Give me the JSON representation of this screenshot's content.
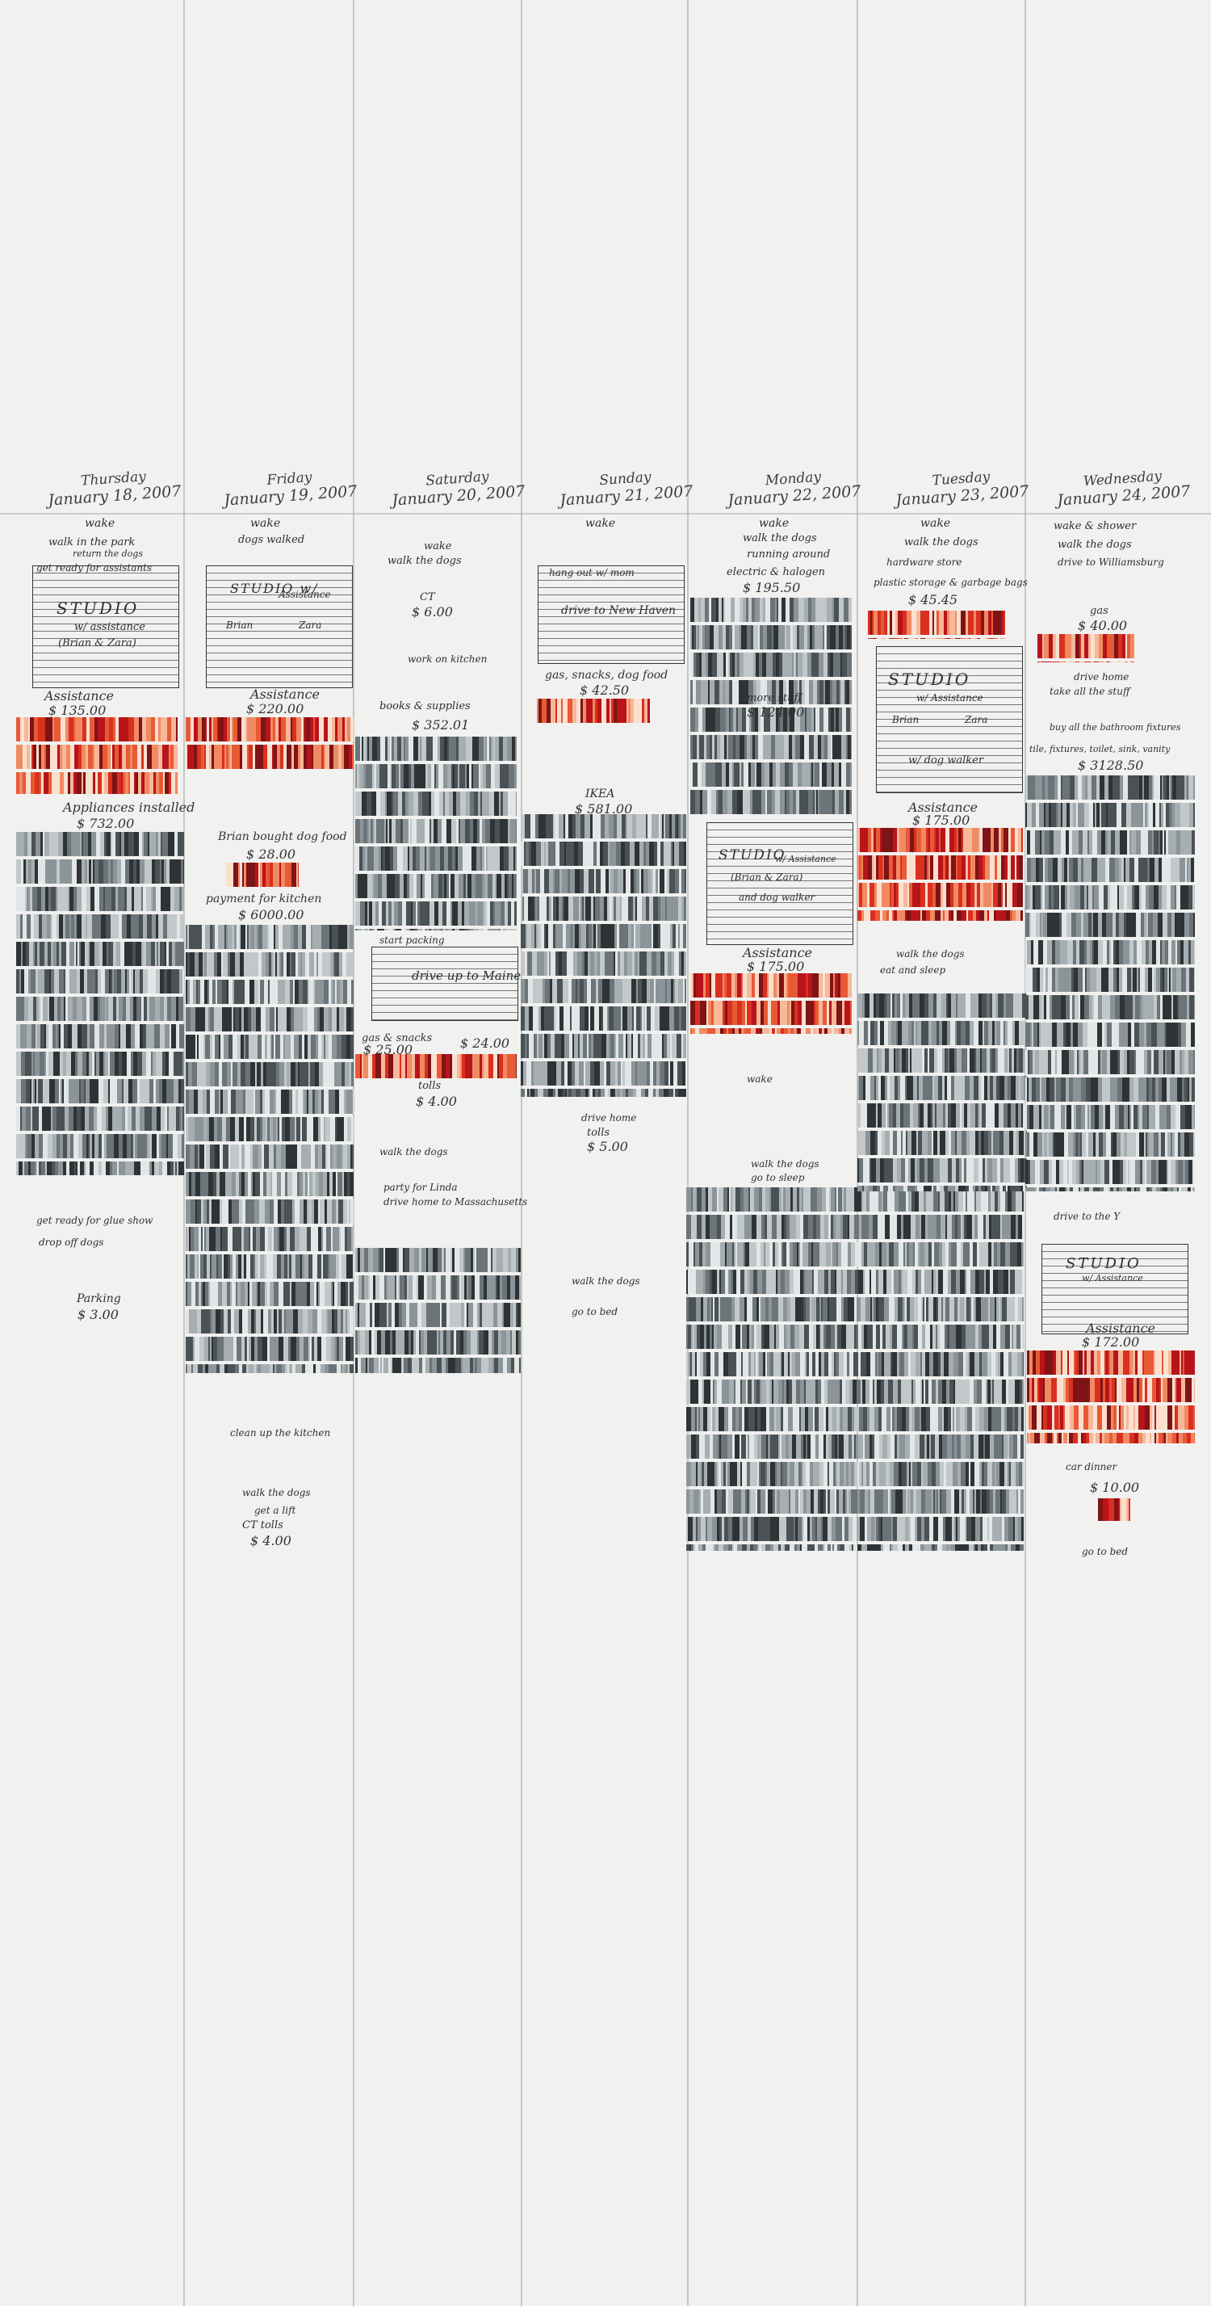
{
  "days": [
    {
      "name": "Thursday",
      "date": "January 18, 2007"
    },
    {
      "name": "Friday",
      "date": "January 19, 2007"
    },
    {
      "name": "Saturday",
      "date": "January 20, 2007"
    },
    {
      "name": "Sunday",
      "date": "January 21, 2007"
    },
    {
      "name": "Monday",
      "date": "January 22, 2007"
    },
    {
      "name": "Tuesday",
      "date": "January 23, 2007"
    },
    {
      "name": "Wednesday",
      "date": "January 24, 2007"
    }
  ],
  "notes": {
    "thu": [
      "wake",
      "walk in the park",
      "return the dogs",
      "get ready for assistants",
      "STUDIO",
      "w/ assistance",
      "(Brian & Zara)",
      "Assistance",
      "$ 135.00",
      "Appliances installed",
      "$ 732.00",
      "get ready for glue show",
      "drop off dogs",
      "Parking",
      "$ 3.00"
    ],
    "fri": [
      "wake",
      "dogs walked",
      "STUDIO w/",
      "Assistance",
      "Brian",
      "Zara",
      "Assistance",
      "$ 220.00",
      "Brian bought dog food",
      "$ 28.00",
      "payment for kitchen",
      "$ 6000.00",
      "clean up the kitchen",
      "walk the dogs",
      "get a lift",
      "CT tolls",
      "$ 4.00"
    ],
    "sat": [
      "wake",
      "walk the dogs",
      "CT",
      "$ 6.00",
      "work on kitchen",
      "books & supplies",
      "$ 352.01",
      "start packing",
      "drive up to Maine",
      "gas & snacks",
      "$ 25.00",
      "$ 24.00",
      "tolls",
      "$ 4.00",
      "walk the dogs",
      "party for Linda",
      "drive home to Massachusetts"
    ],
    "sun": [
      "wake",
      "hang out w/ mom",
      "drive to New Haven",
      "gas, snacks, dog food",
      "$ 42.50",
      "IKEA",
      "$ 581.00",
      "drive home",
      "tolls",
      "$ 5.00",
      "walk the dogs",
      "go to bed"
    ],
    "mon": [
      "wake",
      "walk the dogs",
      "running around",
      "electric & halogen",
      "$ 195.50",
      "more stuff",
      "$ 124.00",
      "STUDIO",
      "w/ Assistance",
      "(Brian & Zara)",
      "and dog walker",
      "Assistance",
      "$ 175.00",
      "wake",
      "walk the dogs",
      "go to sleep"
    ],
    "tue": [
      "wake",
      "walk the dogs",
      "hardware store",
      "plastic storage & garbage bags",
      "$ 45.45",
      "STUDIO",
      "w/ Assistance",
      "Brian",
      "Zara",
      "w/ dog walker",
      "Assistance",
      "$ 175.00",
      "walk the dogs",
      "eat and sleep"
    ],
    "wed": [
      "wake & shower",
      "walk the dogs",
      "drive to Williamsburg",
      "gas",
      "$ 40.00",
      "drive home",
      "take all the stuff",
      "buy all the bathroom fixtures",
      "tile, fixtures, toilet, sink, vanity",
      "$ 3128.50",
      "drive to the Y",
      "STUDIO",
      "w/ Assistance",
      "Assistance",
      "$ 172.00",
      "car dinner",
      "$ 10.00",
      "go to bed"
    ]
  },
  "colors": {
    "paper": "#f1f1f0",
    "ink": "#333333",
    "grey_stripes": [
      "#2f3336",
      "#4b5256",
      "#6b7478",
      "#8b9599",
      "#a6aeb1",
      "#c2c8ca",
      "#e3e6e6"
    ],
    "red_stripes": [
      "#b8141a",
      "#d9301f",
      "#e85a36",
      "#f08a63",
      "#f7b79a",
      "#7e1416",
      "#fbe0cf"
    ]
  }
}
